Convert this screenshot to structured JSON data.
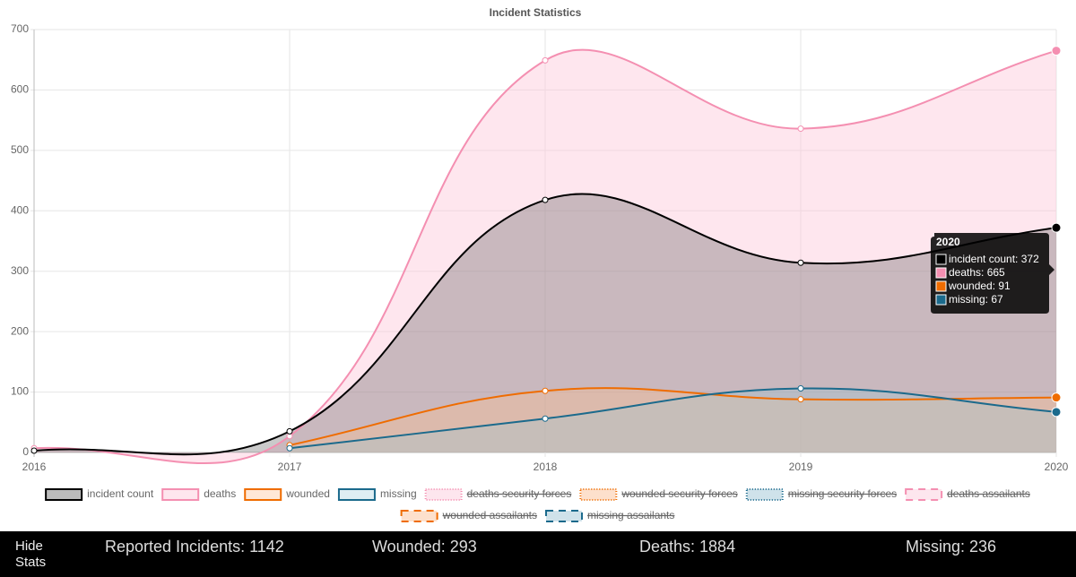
{
  "chart_data": {
    "type": "line",
    "title": "Incident Statistics",
    "categories": [
      "2016",
      "2017",
      "2018",
      "2019",
      "2020"
    ],
    "ylim": [
      0,
      700
    ],
    "yticks": [
      0,
      100,
      200,
      300,
      400,
      500,
      600,
      700
    ],
    "grid": true,
    "fill": true,
    "series": [
      {
        "name": "incident count",
        "color": "#000000",
        "fill": "rgba(80,80,80,0.3)",
        "values": [
          3,
          35,
          418,
          314,
          372
        ]
      },
      {
        "name": "deaths",
        "color": "#f48fb1",
        "fill": "rgba(252,200,218,0.45)",
        "values": [
          7,
          27,
          649,
          536,
          665
        ]
      },
      {
        "name": "wounded",
        "color": "#ef6c00",
        "fill": "rgba(255,190,140,0.35)",
        "values": [
          null,
          12,
          102,
          88,
          91
        ]
      },
      {
        "name": "missing",
        "color": "#1b6a8c",
        "fill": "rgba(150,200,215,0.3)",
        "values": [
          null,
          7,
          56,
          106,
          67
        ]
      }
    ],
    "hidden_series": [
      {
        "name": "deaths security forces",
        "color": "#f48fb1",
        "fill": "#fde6ee",
        "border": "dotted"
      },
      {
        "name": "wounded security forces",
        "color": "#ef6c00",
        "fill": "#fde0cc",
        "border": "dotted"
      },
      {
        "name": "missing security forces",
        "color": "#1b6a8c",
        "fill": "#cfe2ea",
        "border": "dotted"
      },
      {
        "name": "deaths assailants",
        "color": "#f48fb1",
        "fill": "#fde6ee",
        "border": "dashed"
      },
      {
        "name": "wounded assailants",
        "color": "#ef6c00",
        "fill": "#fde0cc",
        "border": "dashed"
      },
      {
        "name": "missing assailants",
        "color": "#1b6a8c",
        "fill": "#cfe2ea",
        "border": "dashed"
      }
    ],
    "tooltip": {
      "title": "2020",
      "items": [
        "incident count: 372",
        "deaths: 665",
        "wounded: 91",
        "missing: 67"
      ]
    }
  },
  "stats_bar": {
    "button": [
      "Hide",
      "Stats"
    ],
    "items": [
      "Reported Incidents: 1142",
      "Wounded: 293",
      "Deaths: 1884",
      "Missing: 236"
    ]
  }
}
